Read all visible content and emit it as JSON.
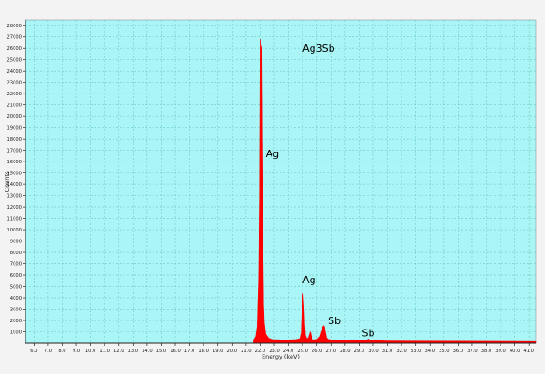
{
  "chart_data": {
    "type": "area",
    "title": "",
    "xlabel": "Energy (keV)",
    "ylabel": "Counts",
    "xlim": [
      5.4,
      41.5
    ],
    "ylim": [
      0,
      28500
    ],
    "grid": true,
    "legend": "none",
    "colors": {
      "plot_bg": "#aaf5f5",
      "grid": "#6fcaca",
      "fill": "#ff0000",
      "page_bg": "#f3f3f3"
    },
    "x_ticks": [
      "6.0",
      "7.0",
      "8.0",
      "9.0",
      "10.0",
      "11.0",
      "12.0",
      "13.0",
      "14.0",
      "15.0",
      "16.0",
      "17.0",
      "18.0",
      "19.0",
      "20.0",
      "21.0",
      "22.0",
      "23.0",
      "24.0",
      "25.0",
      "26.0",
      "27.0",
      "28.0",
      "29.0",
      "30.0",
      "31.0",
      "32.0",
      "33.0",
      "34.0",
      "35.0",
      "36.0",
      "37.0",
      "38.0",
      "39.0",
      "40.0",
      "41.0"
    ],
    "y_ticks": [
      "1000",
      "2000",
      "3000",
      "4000",
      "5000",
      "6000",
      "7000",
      "8000",
      "9000",
      "10000",
      "11000",
      "12000",
      "13000",
      "14000",
      "15000",
      "16000",
      "17000",
      "18000",
      "19000",
      "20000",
      "21000",
      "22000",
      "23000",
      "24000",
      "25000",
      "26000",
      "27000",
      "28000"
    ],
    "series": [
      {
        "x": [
          21.55,
          21.7,
          21.8,
          21.9,
          21.95,
          22.0,
          22.05,
          22.08,
          22.12,
          22.15,
          22.2,
          22.25,
          22.3,
          22.4,
          22.6,
          22.8,
          23.0,
          23.5,
          24.0,
          24.5,
          24.8,
          24.9,
          24.95,
          25.0,
          25.05,
          25.1,
          25.15,
          25.2,
          25.3,
          25.4,
          25.5,
          25.55,
          25.6,
          25.65,
          25.7,
          25.8,
          26.0,
          26.2,
          26.3,
          26.4,
          26.5,
          26.55,
          26.6,
          26.7,
          26.8,
          27.0,
          27.5,
          28.0,
          29.0,
          29.5,
          29.6,
          29.65,
          29.7,
          29.8,
          30.0,
          31.0,
          41.5
        ],
        "y": [
          300,
          600,
          1500,
          6000,
          13000,
          26800,
          25700,
          26200,
          19000,
          14000,
          9000,
          3500,
          1800,
          800,
          450,
          350,
          320,
          300,
          300,
          320,
          400,
          900,
          2800,
          4400,
          4200,
          3200,
          1600,
          700,
          400,
          500,
          900,
          1000,
          700,
          450,
          350,
          300,
          350,
          600,
          1000,
          1400,
          1550,
          1500,
          1100,
          500,
          350,
          300,
          280,
          260,
          240,
          260,
          350,
          380,
          320,
          250,
          230,
          200,
          150
        ]
      }
    ],
    "annotations": [
      {
        "text": "Ag3Sb",
        "x": 25.0,
        "y": 25700
      },
      {
        "text": "Ag",
        "x": 22.4,
        "y": 16400
      },
      {
        "text": "Ag",
        "x": 25.0,
        "y": 5300
      },
      {
        "text": "Sb",
        "x": 26.8,
        "y": 1700
      },
      {
        "text": "Sb",
        "x": 29.2,
        "y": 600
      }
    ]
  }
}
